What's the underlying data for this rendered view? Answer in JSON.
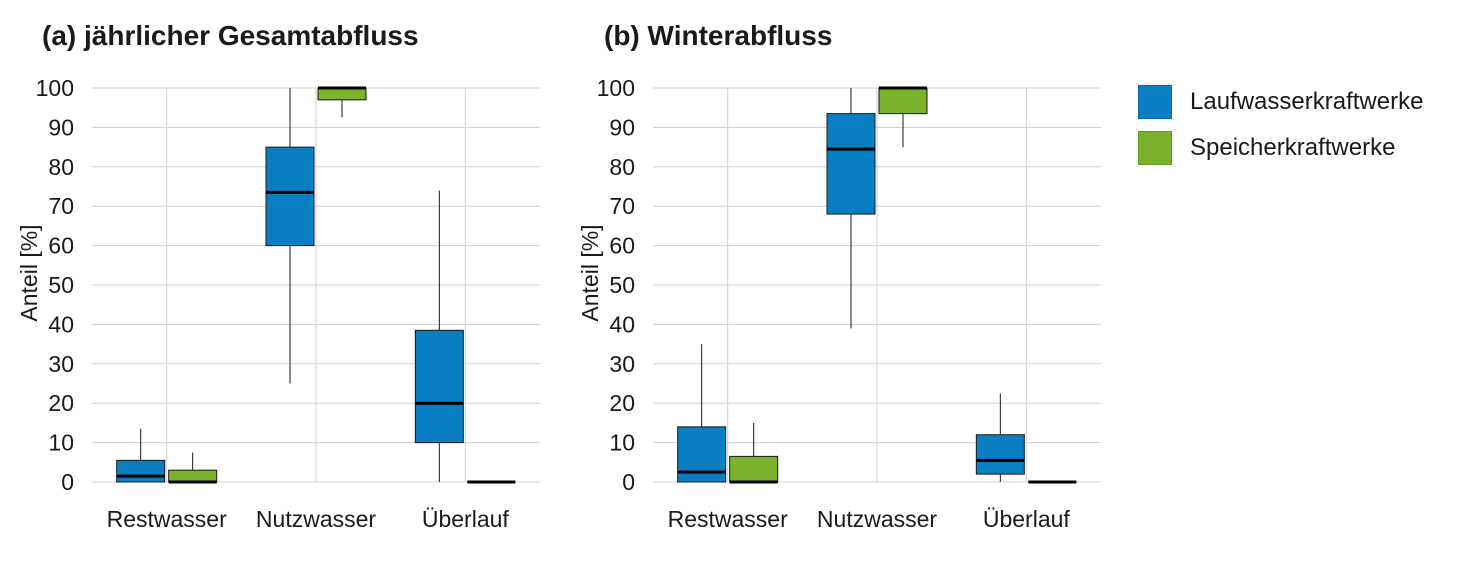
{
  "legend": {
    "items": [
      {
        "label": "Laufwasserkraftwerke",
        "color": "#0a7ec2"
      },
      {
        "label": "Speicherkraftwerke",
        "color": "#7ab32b"
      }
    ]
  },
  "chart_data": [
    {
      "type": "boxplot",
      "title": "(a) jährlicher Gesamtabfluss",
      "ylabel": "Anteil [%]",
      "xlabel": "",
      "ylim": [
        0,
        100
      ],
      "yticks": [
        0,
        10,
        20,
        30,
        40,
        50,
        60,
        70,
        80,
        90,
        100
      ],
      "categories": [
        "Restwasser",
        "Nutzwasser",
        "Überlauf"
      ],
      "grid": true,
      "series": [
        {
          "name": "Laufwasserkraftwerke",
          "color": "#0a7ec2",
          "boxes": [
            {
              "whisker_low": 0,
              "q1": 0,
              "median": 1.5,
              "q3": 5.5,
              "whisker_high": 13.5
            },
            {
              "whisker_low": 25,
              "q1": 60,
              "median": 73.5,
              "q3": 85,
              "whisker_high": 100
            },
            {
              "whisker_low": 0,
              "q1": 10,
              "median": 20,
              "q3": 38.5,
              "whisker_high": 74
            }
          ]
        },
        {
          "name": "Speicherkraftwerke",
          "color": "#7ab32b",
          "boxes": [
            {
              "whisker_low": 0,
              "q1": 0,
              "median": 0,
              "q3": 3,
              "whisker_high": 7.5
            },
            {
              "whisker_low": 92.5,
              "q1": 97,
              "median": 100,
              "q3": 100,
              "whisker_high": 100
            },
            {
              "whisker_low": 0,
              "q1": 0,
              "median": 0,
              "q3": 0,
              "whisker_high": 0
            }
          ]
        }
      ]
    },
    {
      "type": "boxplot",
      "title": "(b) Winterabfluss",
      "ylabel": "Anteil [%]",
      "xlabel": "",
      "ylim": [
        0,
        100
      ],
      "yticks": [
        0,
        10,
        20,
        30,
        40,
        50,
        60,
        70,
        80,
        90,
        100
      ],
      "categories": [
        "Restwasser",
        "Nutzwasser",
        "Überlauf"
      ],
      "grid": true,
      "series": [
        {
          "name": "Laufwasserkraftwerke",
          "color": "#0a7ec2",
          "boxes": [
            {
              "whisker_low": 0,
              "q1": 0,
              "median": 2.5,
              "q3": 14,
              "whisker_high": 35
            },
            {
              "whisker_low": 39,
              "q1": 68,
              "median": 84.5,
              "q3": 93.5,
              "whisker_high": 100
            },
            {
              "whisker_low": 0,
              "q1": 2,
              "median": 5.5,
              "q3": 12,
              "whisker_high": 22.5
            }
          ]
        },
        {
          "name": "Speicherkraftwerke",
          "color": "#7ab32b",
          "boxes": [
            {
              "whisker_low": 0,
              "q1": 0,
              "median": 0,
              "q3": 6.5,
              "whisker_high": 15
            },
            {
              "whisker_low": 85,
              "q1": 93.5,
              "median": 100,
              "q3": 100,
              "whisker_high": 100
            },
            {
              "whisker_low": 0,
              "q1": 0,
              "median": 0,
              "q3": 0,
              "whisker_high": 0
            }
          ]
        }
      ]
    }
  ]
}
